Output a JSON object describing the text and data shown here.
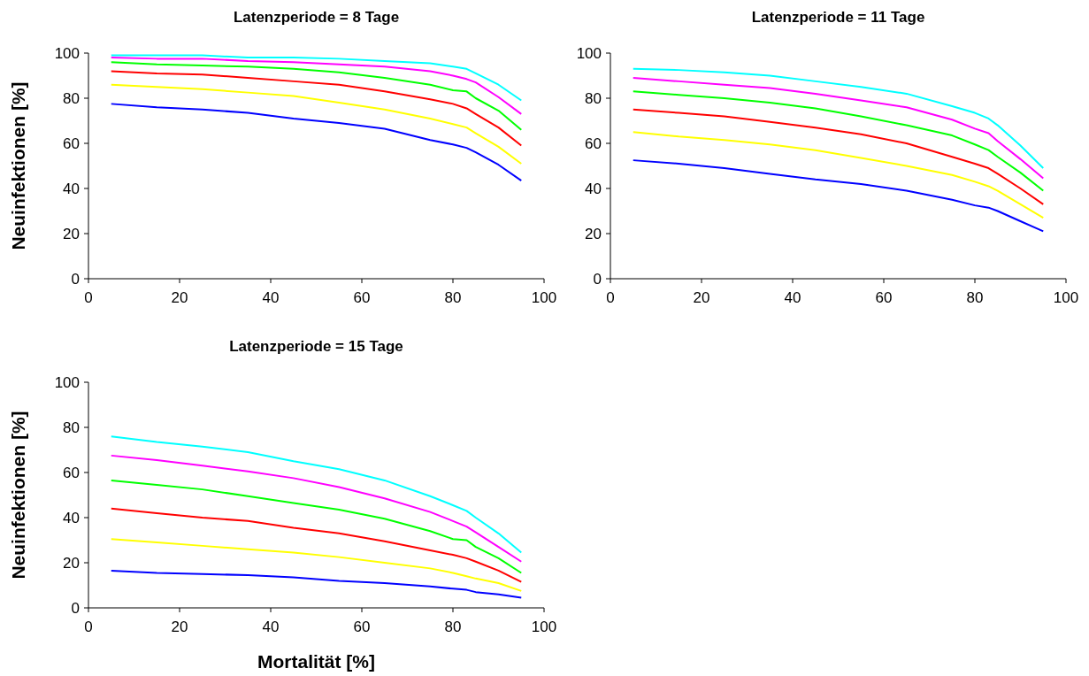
{
  "chart_data": [
    {
      "type": "line",
      "title": "Latenzperiode = 8 Tage",
      "ylabel": "Neuinfektionen [%]",
      "x": [
        5,
        15,
        25,
        35,
        45,
        55,
        65,
        75,
        80,
        83,
        85,
        90,
        95
      ],
      "xlim": [
        0,
        100
      ],
      "xticks": [
        0,
        20,
        40,
        60,
        80,
        100
      ],
      "ylim": [
        0,
        100
      ],
      "yticks": [
        0,
        20,
        40,
        60,
        80,
        100
      ],
      "grid": false,
      "marker": "none",
      "line_style": "solid",
      "series": [
        {
          "color": "#00ffff",
          "values": [
            99,
            99,
            99,
            98,
            98,
            97.5,
            96.5,
            95.5,
            94,
            93,
            91,
            86,
            79
          ]
        },
        {
          "color": "#ff00ff",
          "values": [
            98,
            97.5,
            97.5,
            96.5,
            96,
            95,
            94,
            92,
            90,
            88.5,
            87,
            80.5,
            73
          ]
        },
        {
          "color": "#00ff00",
          "values": [
            96,
            95,
            94.5,
            94,
            93,
            91.5,
            89,
            86,
            83.5,
            83,
            80,
            74.5,
            66
          ]
        },
        {
          "color": "#ff0000",
          "values": [
            92,
            91,
            90.5,
            89,
            87.5,
            86,
            83,
            79.5,
            77.5,
            75.5,
            73,
            67,
            59
          ]
        },
        {
          "color": "#ffff00",
          "values": [
            86,
            85,
            84,
            82.5,
            81,
            78,
            75,
            71,
            68.5,
            67,
            64.5,
            58.5,
            51
          ]
        },
        {
          "color": "#0000ff",
          "values": [
            77.5,
            76,
            75,
            73.5,
            71,
            69,
            66.5,
            61.5,
            59.5,
            58,
            56,
            50.5,
            43.5
          ]
        }
      ]
    },
    {
      "type": "line",
      "title": "Latenzperiode = 11 Tage",
      "x": [
        5,
        15,
        25,
        35,
        45,
        55,
        65,
        75,
        80,
        83,
        85,
        90,
        95
      ],
      "xlim": [
        0,
        100
      ],
      "xticks": [
        0,
        20,
        40,
        60,
        80,
        100
      ],
      "ylim": [
        0,
        100
      ],
      "yticks": [
        0,
        20,
        40,
        60,
        80,
        100
      ],
      "grid": false,
      "marker": "none",
      "line_style": "solid",
      "series": [
        {
          "color": "#00ffff",
          "values": [
            93,
            92.5,
            91.5,
            90,
            87.5,
            85,
            82,
            76.5,
            73.5,
            71,
            68,
            59,
            49
          ]
        },
        {
          "color": "#ff00ff",
          "values": [
            89,
            87.5,
            86,
            84.5,
            82,
            79,
            76,
            70.5,
            66.5,
            64.5,
            61,
            53,
            44.5
          ]
        },
        {
          "color": "#00ff00",
          "values": [
            83,
            81.5,
            80,
            78,
            75.5,
            72,
            68,
            63.5,
            59.5,
            57,
            54,
            47,
            39
          ]
        },
        {
          "color": "#ff0000",
          "values": [
            75,
            73.5,
            72,
            69.5,
            67,
            64,
            60,
            54,
            51,
            49,
            46.5,
            40,
            33
          ]
        },
        {
          "color": "#ffff00",
          "values": [
            65,
            63,
            61.5,
            59.5,
            57,
            53.5,
            50,
            46,
            43,
            41,
            39,
            33,
            27
          ]
        },
        {
          "color": "#0000ff",
          "values": [
            52.5,
            51,
            49,
            46.5,
            44,
            42,
            39,
            35,
            32.5,
            31.5,
            30,
            25.5,
            21
          ]
        }
      ]
    },
    {
      "type": "line",
      "title": "Latenzperiode = 15 Tage",
      "xlabel": "Mortalität [%]",
      "ylabel": "Neuinfektionen [%]",
      "x": [
        5,
        15,
        25,
        35,
        45,
        55,
        65,
        75,
        80,
        83,
        85,
        90,
        95
      ],
      "xlim": [
        0,
        100
      ],
      "xticks": [
        0,
        20,
        40,
        60,
        80,
        100
      ],
      "ylim": [
        0,
        100
      ],
      "yticks": [
        0,
        20,
        40,
        60,
        80,
        100
      ],
      "grid": false,
      "marker": "none",
      "line_style": "solid",
      "series": [
        {
          "color": "#00ffff",
          "values": [
            76,
            73.5,
            71.5,
            69,
            65,
            61.5,
            56.5,
            49.5,
            45.5,
            43,
            40,
            33,
            24.5
          ]
        },
        {
          "color": "#ff00ff",
          "values": [
            67.5,
            65.5,
            63,
            60.5,
            57.5,
            53.5,
            48.5,
            42.5,
            38.5,
            36,
            33.5,
            27,
            20.5
          ]
        },
        {
          "color": "#00ff00",
          "values": [
            56.5,
            54.5,
            52.5,
            49.5,
            46.5,
            43.5,
            39.5,
            34,
            30.5,
            30,
            27,
            22,
            15.5
          ]
        },
        {
          "color": "#ff0000",
          "values": [
            44,
            42,
            40,
            38.5,
            35.5,
            33,
            29.5,
            25.5,
            23.5,
            22,
            20.5,
            16.5,
            11.5
          ]
        },
        {
          "color": "#ffff00",
          "values": [
            30.5,
            29,
            27.5,
            26,
            24.5,
            22.5,
            20,
            17.5,
            15.5,
            14,
            13,
            11,
            7.5
          ]
        },
        {
          "color": "#0000ff",
          "values": [
            16.5,
            15.5,
            15,
            14.5,
            13.5,
            12,
            11,
            9.5,
            8.5,
            8,
            7,
            6,
            4.5
          ]
        }
      ]
    }
  ]
}
